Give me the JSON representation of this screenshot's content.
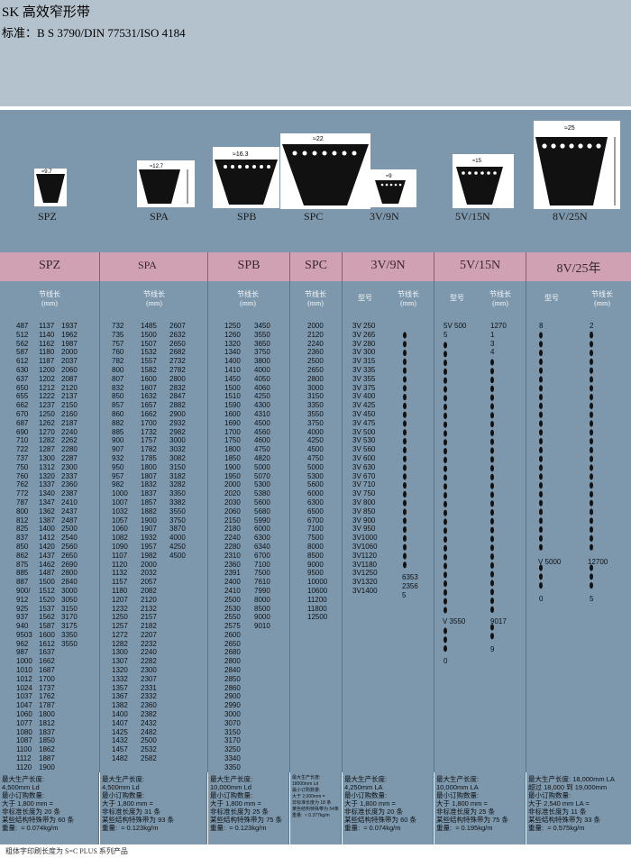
{
  "header": {
    "title": "SK 高效窄形带",
    "standard": "标准：B S 3790/DIN 77531/ISO 4184"
  },
  "diagrams": [
    {
      "label": "SPZ",
      "dim": "9.7"
    },
    {
      "label": "SPA",
      "dim": "12.7"
    },
    {
      "label": "SPB",
      "dim": "16.3"
    },
    {
      "label": "SPC",
      "dim": "22"
    },
    {
      "label": "3V/9N",
      "dim": "9"
    },
    {
      "label": "5V/15N",
      "dim": "15"
    },
    {
      "label": "8V/25N",
      "dim": "25"
    }
  ],
  "columns": [
    {
      "name": "SPZ",
      "sub": "节线长\n(mm)",
      "c1": "487\n512\n562\n587\n612\n630\n637\n650\n655\n662\n670\n687\n690\n710\n722\n737\n750\n760\n762\n772\n787\n800\n812\n825\n837\n850\n862\n875\n885\n887\n900/\n912\n925\n937\n940\n9503\n962\n987\n1000\n1010\n1012\n1024\n1037\n1047\n1060\n1077\n1080\n1087\n1100\n1112\n1120",
      "c2": "1137\n1140\n1162\n1180\n1187\n1200\n1202\n1212\n1222\n1237\n1250\n1262\n1270\n1282\n1287\n1300\n1312\n1320\n1337\n1340\n1347\n1362\n1387\n1400\n1412\n1420\n1437\n1462\n1487\n1500\n1512\n1520\n1537\n1562\n1587\n1600\n1612\n1637\n1662\n1687\n1700\n1737\n1762\n1787\n1800\n1812\n1837\n1850\n1862\n1887\n1900",
      "c3": "1937\n1962\n1987\n2000\n2037\n2060\n2087\n2120\n2137\n2150\n2160\n2187\n2240\n2262\n2280\n2287\n2300\n2337\n2360\n2387\n2410\n2437\n2487\n2500\n2540\n2560\n2650\n2690\n2800\n2840\n3000\n3050\n3150\n3170\n3175\n3350\n3550",
      "foot": "最大生产长度:\n4,500mm Ld\n最小订购数量:\n大于 1,800 mm =\n非标准长度为 20 条\n某些结构特殊带为 60 条\n重量:  ≈ 0.074kg/m"
    },
    {
      "name": "SPA",
      "sub": "节线长\n(mm)",
      "c1": "732\n735\n757\n760\n782\n800\n807\n832\n850\n857\n860\n882\n885\n900\n907\n932\n950\n957\n982\n1000\n1007\n1032\n1057\n1060\n1082\n1090\n1107\n1120\n1132\n1157\n1180\n1207\n1232\n1250\n1257\n1272\n1282\n1300\n1307\n1320\n1332\n1357\n1367\n1382\n1400\n1407\n1425\n1432\n1457\n1482",
      "c2": "1485\n1500\n1507\n1532\n1557\n1582\n1600\n1607\n1632\n1657\n1662\n1700\n1732\n1757\n1782\n1785\n1800\n1807\n1832\n1837\n1857\n1882\n1900\n1907\n1932\n1957\n1982\n2000\n2032\n2057\n2082\n2120\n2132\n2157\n2182\n2207\n2232\n2240\n2282\n2300\n2307\n2331\n2332\n2360\n2382\n2432\n2482\n2500\n2532\n2582",
      "c3": "2607\n2632\n2650\n2682\n2732\n2782\n2800\n2832\n2847\n2882\n2900\n2932\n2982\n3000\n3032\n3082\n3150\n3182\n3282\n3350\n3382\n3550\n3750\n3870\n4000\n4250\n4500",
      "foot": "最大生产长度:\n4,500mm Ld\n最小订购数量:\n大于 1,800 mm =\n非标准长度为 31 条\n某些结构特殊带为 93 条\n重量:  ≈ 0.123kg/m"
    },
    {
      "name": "SPB",
      "sub": "节线长\n(mm)",
      "c1": "1250\n1260\n1320\n1340\n1400\n1410\n1450\n1500\n1510\n1590\n1600\n1690\n1700\n1750\n1800\n1850\n1900\n1950\n2000\n2020\n2030\n2060\n2150\n2180\n2240\n2280\n2310\n2360\n2391\n2400\n2410\n2500\n2530\n2550\n2575\n2600\n2650\n2680\n2800\n2840\n2850\n2860\n2900\n2990\n3000\n3070\n3150\n3170\n3250\n3340\n3350",
      "c2": "3450\n3550\n3650\n3750\n3800\n4000\n4050\n4060\n4250\n4300\n4310\n4500\n4560\n4600\n4750\n4820\n5000\n5070\n5300\n5380\n5600\n5680\n5990\n6000\n6300\n6340\n6700\n7100\n7500\n7610\n7990\n8000\n8500\n9000\n9010",
      "c3": "",
      "foot": "最大生产长度:\n10,000mm Ld\n最小订购数量:\n大于 1,800 mm =\n非标准长度为 25 条\n某些结构特殊带为 75 条\n重量:  ≈ 0.123kg/m"
    },
    {
      "name": "SPC",
      "sub": "节线长\n(mm)",
      "c1": "2000\n2120\n2240\n2360\n2500\n2650\n2800\n3000\n3150\n3350\n3550\n3750\n4000\n4250\n4500\n4750\n5000\n5300\n5600\n6000\n6300\n6500\n6700\n7100\n7500\n8000\n8500\n9000\n9500\n10000\n10600\n11200\n11800\n12500",
      "c2": "",
      "c3": "",
      "foot": "最大生产长度:\n18000mm Ld\n最小订购数量:\n大于 2,000mm =\n非标准长度为 18 条\n某些结构特殊带为 54条\n重量:  ≈ 0.377kg/m"
    },
    {
      "name": "3V/9N",
      "sub": "型号",
      "c1": "3V 250\n3V 265\n3V 280\n3V 300\n3V 315\n3V 335\n3V 355\n3V 375\n3V 400\n3V 425\n3V 450\n3V 475\n3V 500\n3V 530\n3V 560\n3V 600\n3V 630\n3V 670\n3V 710\n3V 750\n3V 800\n3V 850\n3V 900\n3V 950\n3V1000\n3V1060\n3V1120\n3V1180\n3V1250\n3V1320\n3V1400",
      "c2": "",
      "c3": "",
      "foot": "最大生产长度:\n4,250mm LA\n最小订购数量:\n大于 1,800 mm =\n非标准长度为 20 条\n某些结构特殊带为 60 条\n重量:  ≈ 0.074kg/m"
    },
    {
      "name": "5V/15N",
      "sub": "型号",
      "c1": "5V 500\n5",
      "c2": "1270\n1\n3\n4",
      "c3": "",
      "foot": "最大生产长度:\n10,000mm LA\n最小订购数量:\n大于 1,800 mm =\n非标准长度为 25 条\n某些结构特殊带为 75 条\n重量:  ≈ 0.195kg/m"
    },
    {
      "name": "8V/25",
      "name2": "年",
      "sub": "型号",
      "c1": "8\n",
      "c2": "2\n5",
      "c3": "",
      "foot": "最大生产长度: 18,000mm LA\n超过 18,000 到 19,000mm\n最小订购数量:\n大于 2,540 mm LA =\n非标准长度为 11 条\n某些结构特殊带为 33 条\n重量:  ≈ 0.575kg/m"
    }
  ],
  "subs": {
    "jiexian": "节线长\n(mm)",
    "xinghao": "型号"
  },
  "extra": {
    "v3_tail": "6353\n2356\n5",
    "v5_mid": "V 3550",
    "v5_len_mid": "9017",
    "v5_len_tail": "9",
    "v5_tail": "0",
    "v8_mid": "V 5000",
    "v8_len_mid": "12700",
    "v8_tail_a": "0",
    "v8_tail_b": "5"
  },
  "bottom": "粗体字印刷长度为 S=C PLUS 系列产品"
}
